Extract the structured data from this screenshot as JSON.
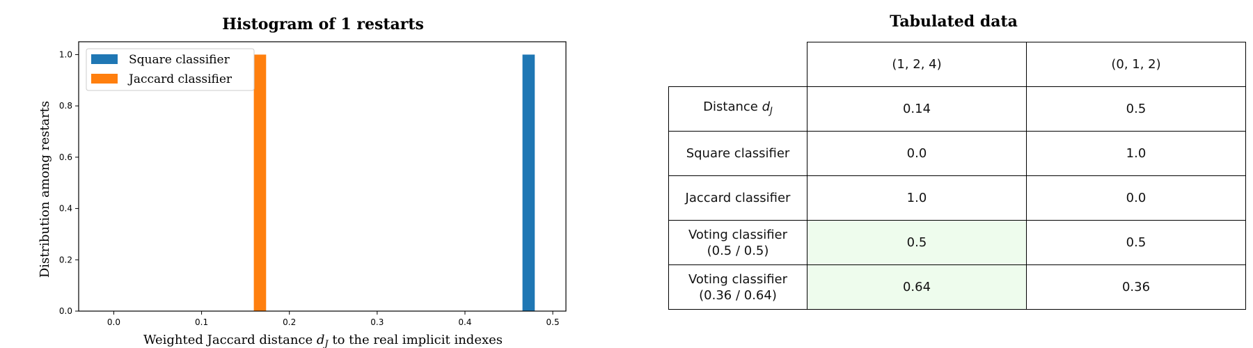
{
  "chart_data": [
    {
      "type": "bar",
      "title": "Histogram of 1 restarts",
      "xlabel_prefix": "Weighted Jaccard distance ",
      "xlabel_symbol": "d",
      "xlabel_sub": "J",
      "xlabel_suffix": " to the real implicit indexes",
      "ylabel": "Distribution among restarts",
      "xlim": [
        -0.04,
        0.515
      ],
      "ylim": [
        0,
        1.05
      ],
      "xticks": [
        "0.0",
        "0.1",
        "0.2",
        "0.3",
        "0.4",
        "0.5"
      ],
      "yticks": [
        "0.0",
        "0.2",
        "0.4",
        "0.6",
        "0.8",
        "1.0"
      ],
      "legend_position": "top-left",
      "series": [
        {
          "name": "Square classifier",
          "color": "#1f77b4",
          "bars": [
            {
              "x0": 0.4655,
              "x1": 0.4795,
              "value": 1.0
            }
          ]
        },
        {
          "name": "Jaccard classifier",
          "color": "#ff7f0e",
          "bars": [
            {
              "x0": 0.1595,
              "x1": 0.1735,
              "value": 1.0
            }
          ]
        }
      ]
    },
    {
      "type": "table",
      "title": "Tabulated data",
      "columns": [
        "(1, 2, 4)",
        "(0, 1, 2)"
      ],
      "rows": [
        {
          "label_prefix": "Distance ",
          "label_symbol": "d",
          "label_sub": "J",
          "values": [
            "0.14",
            "0.5"
          ]
        },
        {
          "label": "Square classifier",
          "values": [
            "0.0",
            "1.0"
          ]
        },
        {
          "label": "Jaccard classifier",
          "values": [
            "1.0",
            "0.0"
          ]
        },
        {
          "label_line1": "Voting classifier",
          "label_line2": "(0.5 / 0.5)",
          "values": [
            "0.5",
            "0.5"
          ]
        },
        {
          "label_line1": "Voting classifier",
          "label_line2": "(0.36 / 0.64)",
          "values": [
            "0.64",
            "0.36"
          ]
        }
      ],
      "highlight_color": "#eefced"
    }
  ]
}
